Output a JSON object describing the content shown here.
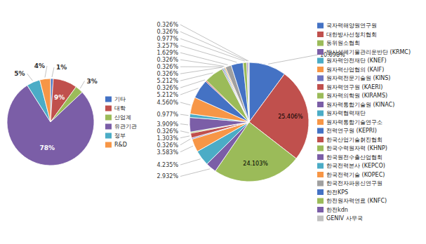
{
  "chart_data": [
    {
      "type": "pie",
      "categories": [
        "기타",
        "대학",
        "산업계",
        "유관기관",
        "정부",
        "R&D"
      ],
      "values": [
        1,
        9,
        3,
        78,
        5,
        4
      ],
      "value_labels": [
        "1%",
        "9%",
        "3%",
        "78%",
        "5%",
        "4%"
      ],
      "colors": [
        "#4472C4",
        "#C0504D",
        "#9BBB59",
        "#7B5EA7",
        "#4BACC6",
        "#F79646"
      ],
      "data_labels": true,
      "legend": "right"
    },
    {
      "type": "pie",
      "categories": [
        "국자력해양원연구원",
        "대한방사선청치협회",
        "동위원소협회",
        "방사성폐기물관리운반단 (KRMC)",
        "원자력안전재단 (KNEF)",
        "원자력산업협의 (KAIF)",
        "원자력전문기술원 (KINS)",
        "원자력연구원 (KAERI)",
        "원자력의학원 (KIRAMS)",
        "원자력통합기술원 (KINAC)",
        "원자력협력재단",
        "원자력통합기술연구소",
        "전력연구원 (KEPRI)",
        "한국산업기술쳙진협회",
        "한국수력원자력 (KHNP)",
        "한국원전수출산업협회",
        "한국전력본사 (KEPCO)",
        "한국전력기술 (KOPEC)",
        "한국전자파응신연구원",
        "한전KPS",
        "한전원자력연료 (KNFC)",
        "한전kdn",
        "GENIV 사무국"
      ],
      "values": [
        10.098,
        25.406,
        24.103,
        2.932,
        4.235,
        3.583,
        0.326,
        1.303,
        0.326,
        3.909,
        0.977,
        4.56,
        5.212,
        0.326,
        5.212,
        0.326,
        0.326,
        0.326,
        1.629,
        3.257,
        0.977,
        0.326,
        0.326
      ],
      "value_labels": [
        "10.098%",
        "25.406%",
        "24.103%",
        "2.932%",
        "4.235%",
        "3.583%",
        "0.326%",
        "1.303%",
        "0.326%",
        "3.909%",
        "0.977%",
        "4.560%",
        "5.212%",
        "0.326%",
        "5.212%",
        "0.326%",
        "0.326%",
        "0.326%",
        "1.629%",
        "3.257%",
        "0.977%",
        "0.326%",
        "0.326%"
      ],
      "colors": [
        "#4472C4",
        "#C0504D",
        "#9BBB59",
        "#7B5EA7",
        "#4BACC6",
        "#F79646",
        "#6E74C0",
        "#C0504D",
        "#9BBB59",
        "#7B5EA7",
        "#4BACC6",
        "#F79646",
        "#4472C4",
        "#C0504D",
        "#9BBB59",
        "#7B5EA7",
        "#4BACC6",
        "#F79646",
        "#A0A0A0",
        "#4472C4",
        "#9BBB59",
        "#7B5EA7",
        "#C0C0C0"
      ],
      "data_labels": true,
      "legend": "right"
    }
  ]
}
